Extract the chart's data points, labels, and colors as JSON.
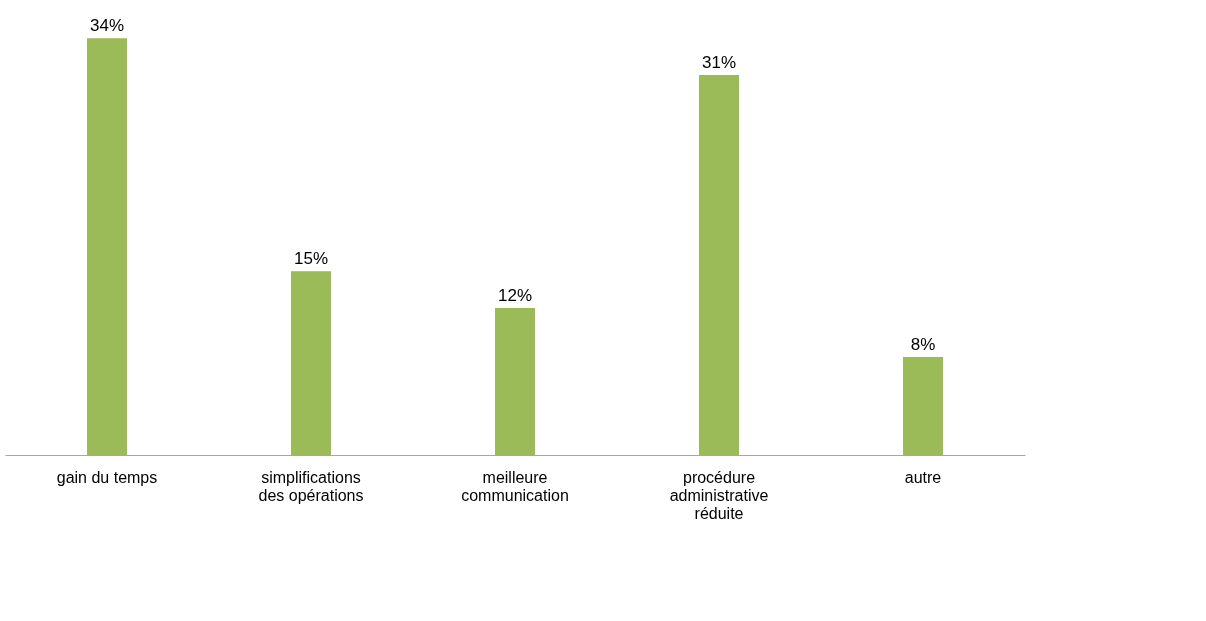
{
  "chart_data": {
    "type": "bar",
    "categories": [
      "gain du temps",
      "simplifications des opérations",
      "meilleure communication",
      "procédure administrative réduite",
      "autre"
    ],
    "values": [
      34,
      15,
      12,
      31,
      8
    ],
    "value_labels": [
      "34%",
      "15%",
      "12%",
      "31%",
      "8%"
    ],
    "color": "#9bbb59",
    "tick_labels": "x",
    "grid": false
  }
}
